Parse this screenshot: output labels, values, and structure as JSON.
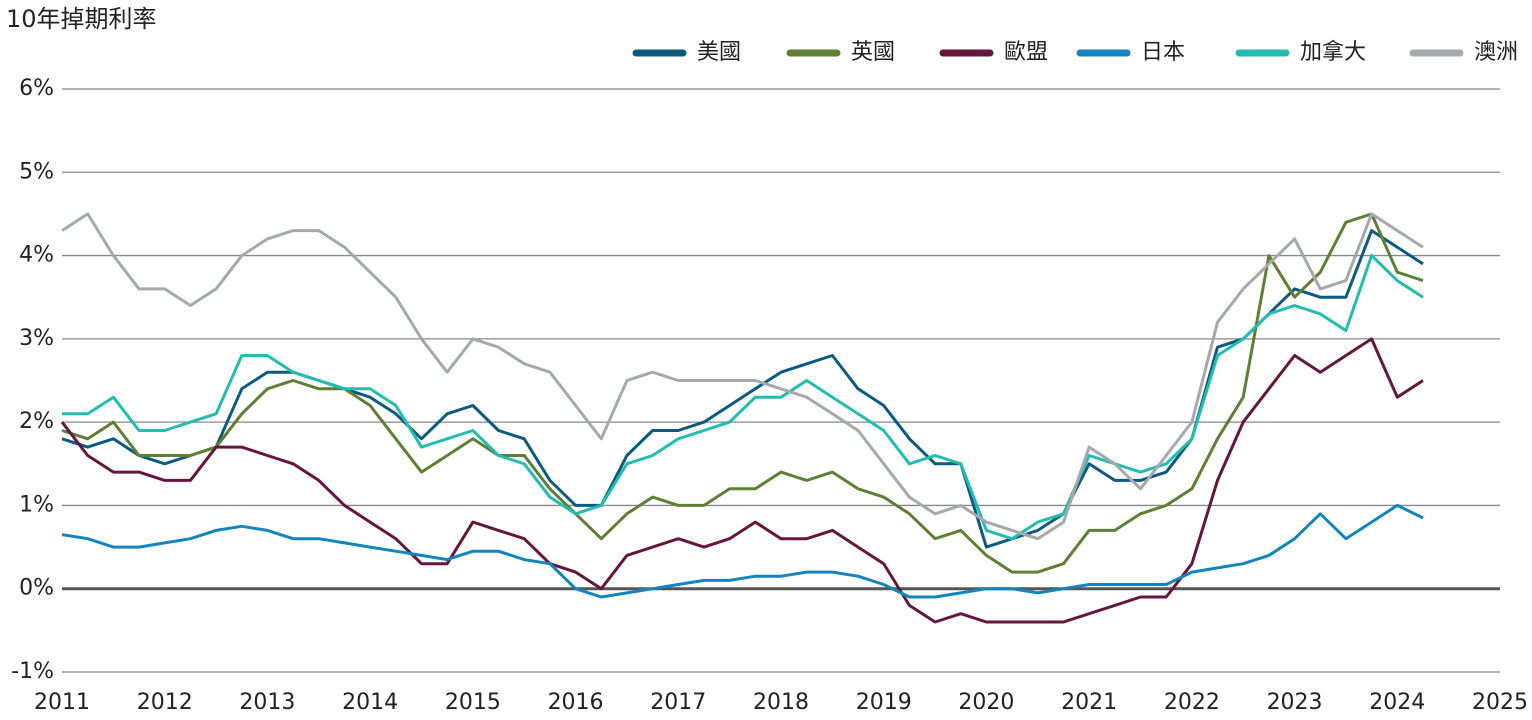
{
  "chart_data": {
    "type": "line",
    "title": "10年掉期利率",
    "x": [
      2011,
      2011.25,
      2011.5,
      2011.75,
      2012,
      2012.25,
      2012.5,
      2012.75,
      2013,
      2013.25,
      2013.5,
      2013.75,
      2014,
      2014.25,
      2014.5,
      2014.75,
      2015,
      2015.25,
      2015.5,
      2015.75,
      2016,
      2016.25,
      2016.5,
      2016.75,
      2017,
      2017.25,
      2017.5,
      2017.75,
      2018,
      2018.25,
      2018.5,
      2018.75,
      2019,
      2019.25,
      2019.5,
      2019.75,
      2020,
      2020.25,
      2020.5,
      2020.75,
      2021,
      2021.25,
      2021.5,
      2021.75,
      2022,
      2022.25,
      2022.5,
      2022.75,
      2023,
      2023.25,
      2023.5,
      2023.75,
      2024,
      2024.25
    ],
    "series": [
      {
        "name": "美國",
        "color": "#0d5a80",
        "values": [
          1.8,
          1.7,
          1.8,
          1.6,
          1.5,
          1.6,
          1.7,
          2.4,
          2.6,
          2.6,
          2.5,
          2.4,
          2.3,
          2.1,
          1.8,
          2.1,
          2.2,
          1.9,
          1.8,
          1.3,
          1.0,
          1.0,
          1.6,
          1.9,
          1.9,
          2.0,
          2.2,
          2.4,
          2.6,
          2.7,
          2.8,
          2.4,
          2.2,
          1.8,
          1.5,
          1.5,
          0.5,
          0.6,
          0.7,
          0.9,
          1.5,
          1.3,
          1.3,
          1.4,
          1.8,
          2.9,
          3.0,
          3.3,
          3.6,
          3.5,
          3.5,
          4.3,
          4.1,
          3.9
        ]
      },
      {
        "name": "英國",
        "color": "#5f7f35",
        "values": [
          1.9,
          1.8,
          2.0,
          1.6,
          1.6,
          1.6,
          1.7,
          2.1,
          2.4,
          2.5,
          2.4,
          2.4,
          2.2,
          1.8,
          1.4,
          1.6,
          1.8,
          1.6,
          1.6,
          1.2,
          0.9,
          0.6,
          0.9,
          1.1,
          1.0,
          1.0,
          1.2,
          1.2,
          1.4,
          1.3,
          1.4,
          1.2,
          1.1,
          0.9,
          0.6,
          0.7,
          0.4,
          0.2,
          0.2,
          0.3,
          0.7,
          0.7,
          0.9,
          1.0,
          1.2,
          1.8,
          2.3,
          4.0,
          3.5,
          3.8,
          4.4,
          4.5,
          3.8,
          3.7
        ]
      },
      {
        "name": "歐盟",
        "color": "#65163f",
        "values": [
          2.0,
          1.6,
          1.4,
          1.4,
          1.3,
          1.3,
          1.7,
          1.7,
          1.6,
          1.5,
          1.3,
          1.0,
          0.8,
          0.6,
          0.3,
          0.3,
          0.8,
          0.7,
          0.6,
          0.3,
          0.2,
          0.0,
          0.4,
          0.5,
          0.6,
          0.5,
          0.6,
          0.8,
          0.6,
          0.6,
          0.7,
          0.5,
          0.3,
          -0.2,
          -0.4,
          -0.3,
          -0.4,
          -0.4,
          -0.4,
          -0.4,
          -0.3,
          -0.2,
          -0.1,
          -0.1,
          0.3,
          1.3,
          2.0,
          2.4,
          2.8,
          2.6,
          2.8,
          3.0,
          2.3,
          2.5
        ]
      },
      {
        "name": "日本",
        "color": "#1484bf",
        "values": [
          0.65,
          0.6,
          0.5,
          0.5,
          0.55,
          0.6,
          0.7,
          0.75,
          0.7,
          0.6,
          0.6,
          0.55,
          0.5,
          0.45,
          0.4,
          0.35,
          0.45,
          0.45,
          0.35,
          0.3,
          0.0,
          -0.1,
          -0.05,
          0.0,
          0.05,
          0.1,
          0.1,
          0.15,
          0.15,
          0.2,
          0.2,
          0.15,
          0.05,
          -0.1,
          -0.1,
          -0.05,
          0.0,
          0.0,
          -0.05,
          0.0,
          0.05,
          0.05,
          0.05,
          0.05,
          0.2,
          0.25,
          0.3,
          0.4,
          0.6,
          0.9,
          0.6,
          0.8,
          1.0,
          0.85
        ]
      },
      {
        "name": "加拿大",
        "color": "#22bcb0",
        "values": [
          2.1,
          2.1,
          2.3,
          1.9,
          1.9,
          2.0,
          2.1,
          2.8,
          2.8,
          2.6,
          2.5,
          2.4,
          2.4,
          2.2,
          1.7,
          1.8,
          1.9,
          1.6,
          1.5,
          1.1,
          0.9,
          1.0,
          1.5,
          1.6,
          1.8,
          1.9,
          2.0,
          2.3,
          2.3,
          2.5,
          2.3,
          2.1,
          1.9,
          1.5,
          1.6,
          1.5,
          0.7,
          0.6,
          0.8,
          0.9,
          1.6,
          1.5,
          1.4,
          1.5,
          1.8,
          2.8,
          3.0,
          3.3,
          3.4,
          3.3,
          3.1,
          4.0,
          3.7,
          3.5
        ]
      },
      {
        "name": "澳洲",
        "color": "#a7a8ae",
        "values": [
          4.3,
          4.5,
          4.0,
          3.6,
          3.6,
          3.4,
          3.6,
          4.0,
          4.2,
          4.3,
          4.3,
          4.1,
          3.8,
          3.5,
          3.0,
          2.6,
          3.0,
          2.9,
          2.7,
          2.6,
          2.2,
          1.8,
          2.5,
          2.6,
          2.5,
          2.5,
          2.5,
          2.5,
          2.4,
          2.3,
          2.1,
          1.9,
          1.5,
          1.1,
          0.9,
          1.0,
          0.8,
          0.7,
          0.6,
          0.8,
          1.7,
          1.5,
          1.2,
          1.6,
          2.0,
          3.2,
          3.6,
          3.9,
          4.2,
          3.6,
          3.7,
          4.5,
          4.3,
          4.1
        ]
      }
    ],
    "xlim": [
      2011,
      2025
    ],
    "xticks": [
      2011,
      2012,
      2013,
      2014,
      2015,
      2016,
      2017,
      2018,
      2019,
      2020,
      2021,
      2022,
      2023,
      2024,
      2025
    ],
    "ylim": [
      -1,
      6
    ],
    "yticks": [
      {
        "value": -1,
        "label": "-1%"
      },
      {
        "value": 0,
        "label": "0%"
      },
      {
        "value": 1,
        "label": "1%"
      },
      {
        "value": 2,
        "label": "2%"
      },
      {
        "value": 3,
        "label": "3%"
      },
      {
        "value": 4,
        "label": "4%"
      },
      {
        "value": 5,
        "label": "5%"
      },
      {
        "value": 6,
        "label": "6%"
      }
    ],
    "grid": true,
    "legend": "top-right"
  }
}
